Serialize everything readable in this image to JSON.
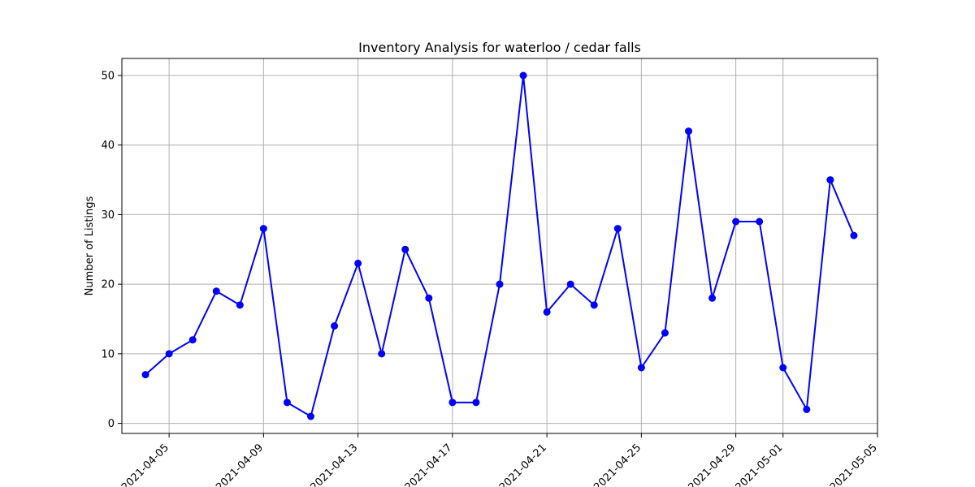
{
  "chart_data": {
    "type": "line",
    "title": "Inventory Analysis for waterloo / cedar falls",
    "xlabel": "",
    "ylabel": "Number of Listings",
    "grid": true,
    "color": "#0000ff",
    "x": [
      "2021-04-04",
      "2021-04-05",
      "2021-04-06",
      "2021-04-07",
      "2021-04-08",
      "2021-04-09",
      "2021-04-10",
      "2021-04-11",
      "2021-04-12",
      "2021-04-13",
      "2021-04-14",
      "2021-04-15",
      "2021-04-16",
      "2021-04-17",
      "2021-04-18",
      "2021-04-19",
      "2021-04-20",
      "2021-04-21",
      "2021-04-22",
      "2021-04-23",
      "2021-04-24",
      "2021-04-25",
      "2021-04-26",
      "2021-04-27",
      "2021-04-28",
      "2021-04-29",
      "2021-04-30",
      "2021-05-01",
      "2021-05-02",
      "2021-05-03",
      "2021-05-04"
    ],
    "values": [
      7,
      10,
      12,
      19,
      17,
      28,
      3,
      1,
      14,
      23,
      10,
      25,
      18,
      3,
      3,
      20,
      50,
      16,
      20,
      17,
      28,
      8,
      13,
      42,
      18,
      29,
      29,
      8,
      2,
      35,
      27
    ],
    "xlim": [
      "2021-04-03",
      "2021-05-05"
    ],
    "ylim": [
      -1.45,
      52.45
    ],
    "xticks": [
      "2021-04-05",
      "2021-04-09",
      "2021-04-13",
      "2021-04-17",
      "2021-04-21",
      "2021-04-25",
      "2021-04-29",
      "2021-05-01",
      "2021-05-05"
    ],
    "yticks": [
      0,
      10,
      20,
      30,
      40,
      50
    ]
  }
}
